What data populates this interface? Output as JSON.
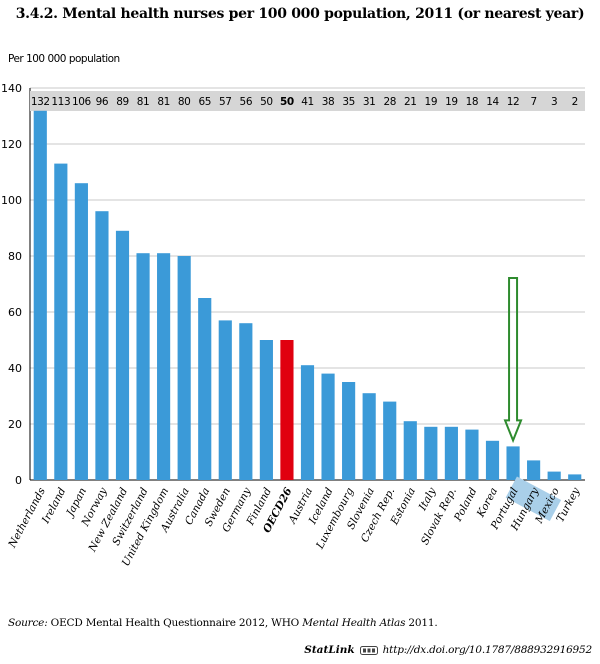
{
  "chart_data": {
    "type": "bar",
    "title": "3.4.2.  Mental health nurses per 100 000 population, 2011 (or nearest year)",
    "ylabel": "Per 100 000 population",
    "xlabel": "",
    "ylim": [
      0,
      140
    ],
    "yticks": [
      0,
      20,
      40,
      60,
      80,
      100,
      120,
      140
    ],
    "grid": true,
    "categories": [
      "Netherlands",
      "Ireland",
      "Japan",
      "Norway",
      "New Zealand",
      "Switzerland",
      "United Kingdom",
      "Australia",
      "Canada",
      "Sweden",
      "Germany",
      "Finland",
      "OECD26",
      "Austria",
      "Iceland",
      "Luxembourg",
      "Slovenia",
      "Czech Rep.",
      "Estonia",
      "Italy",
      "Slovak Rep.",
      "Poland",
      "Korea",
      "Portugal",
      "Hungary",
      "Mexico",
      "Turkey"
    ],
    "values": [
      132,
      113,
      106,
      96,
      89,
      81,
      81,
      80,
      65,
      57,
      56,
      50,
      50,
      41,
      38,
      35,
      31,
      28,
      21,
      19,
      19,
      18,
      14,
      12,
      7,
      3,
      2
    ],
    "value_labels": [
      "132",
      "113",
      "106",
      "96",
      "89",
      "81",
      "81",
      "80",
      "65",
      "57",
      "56",
      "50",
      "50",
      "41",
      "38",
      "35",
      "31",
      "28",
      "21",
      "19",
      "19",
      "18",
      "14",
      "12",
      "7",
      "3",
      "2"
    ],
    "highlight_category": "OECD26",
    "emphasized_category": "Portugal",
    "annotation": "arrow pointing to Portugal",
    "colors": {
      "bar": "#3b9ad8",
      "highlight_bar": "#e0000f",
      "value_band": "#d6d6d6",
      "grid": "#c8c8c8",
      "label_highlight": "#a9cfe9",
      "arrow": "#2e8b2e"
    }
  },
  "footer": {
    "source_label": "Source:",
    "source_text_1": "OECD Mental Health Questionnaire 2012, WHO ",
    "source_text_italic": "Mental Health Atlas",
    "source_text_2": " 2011.",
    "statlink_label": "StatLink",
    "statlink_icon": "statlink-icon",
    "statlink_url": "http://dx.doi.org/10.1787/888932916952"
  }
}
